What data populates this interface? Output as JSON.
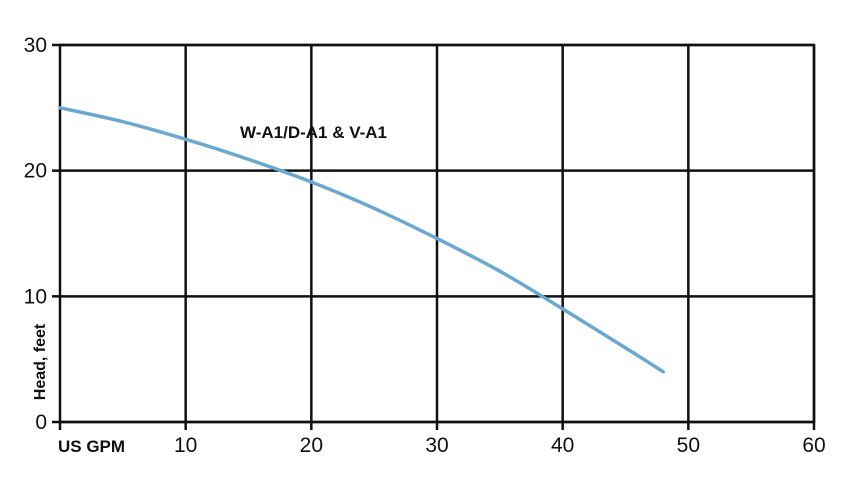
{
  "chart_data": {
    "type": "line",
    "xlabel": "US GPM",
    "ylabel": "Head, feet",
    "xlim": [
      0,
      60
    ],
    "ylim": [
      0,
      30
    ],
    "x_ticks": [
      10,
      20,
      30,
      40,
      50,
      60
    ],
    "y_ticks": [
      0,
      10,
      20,
      30
    ],
    "grid": true,
    "series": [
      {
        "name": "W-A1/D-A1 & V-A1",
        "color": "#6aa8d0",
        "x": [
          0,
          5,
          10,
          15,
          20,
          25,
          30,
          35,
          40,
          45,
          48
        ],
        "y": [
          25.0,
          23.9,
          22.5,
          20.9,
          19.1,
          17.0,
          14.6,
          12.0,
          9.0,
          5.9,
          4.0
        ]
      }
    ]
  }
}
